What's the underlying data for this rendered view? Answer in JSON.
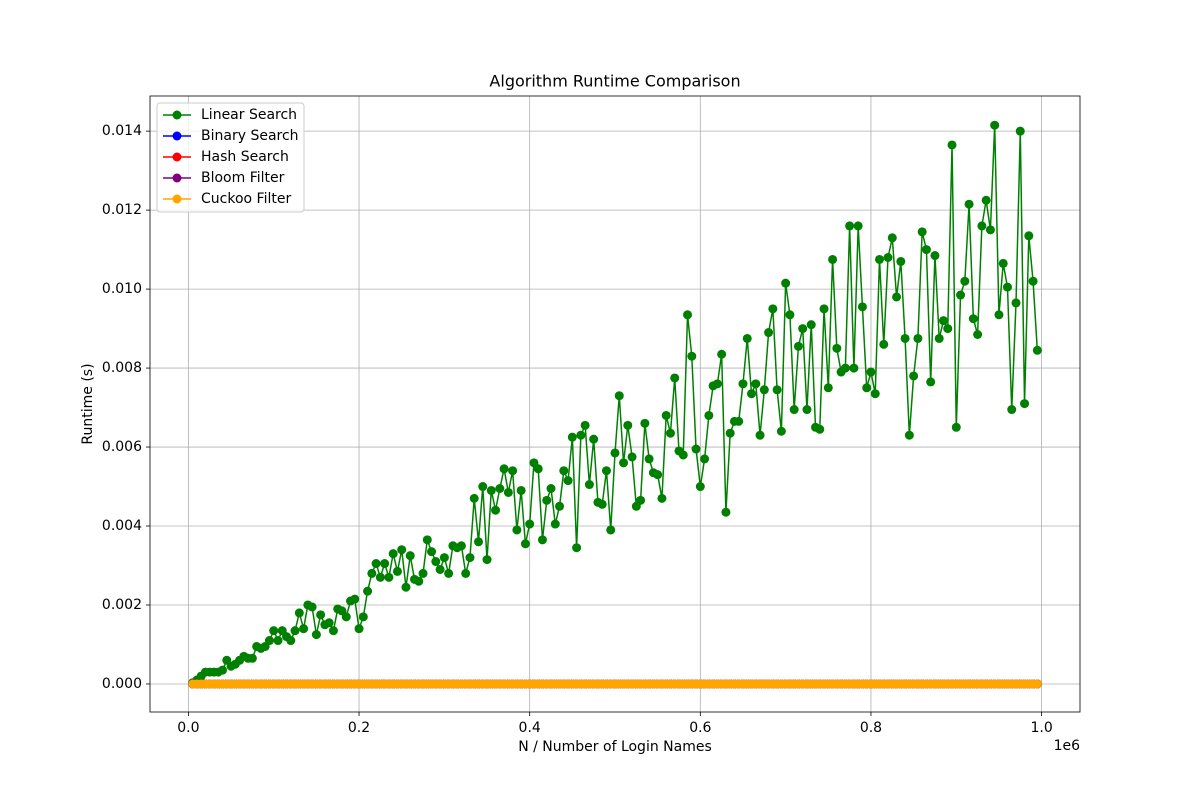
{
  "chart_data": {
    "type": "line",
    "title": "Algorithm Runtime Comparison",
    "x_label": "N / Number of Login Names",
    "y_label": "Runtime (s)",
    "x_offset_label": "1e6",
    "xlim": [
      -45000,
      1045000
    ],
    "ylim": [
      -0.00071,
      0.01489
    ],
    "xticks": [
      {
        "value": 0,
        "label": "0.0"
      },
      {
        "value": 200000,
        "label": "0.2"
      },
      {
        "value": 400000,
        "label": "0.4"
      },
      {
        "value": 600000,
        "label": "0.6"
      },
      {
        "value": 800000,
        "label": "0.8"
      },
      {
        "value": 1000000,
        "label": "1.0"
      }
    ],
    "yticks": [
      {
        "value": 0,
        "label": "0.000"
      },
      {
        "value": 0.002,
        "label": "0.002"
      },
      {
        "value": 0.004,
        "label": "0.004"
      },
      {
        "value": 0.006,
        "label": "0.006"
      },
      {
        "value": 0.008,
        "label": "0.008"
      },
      {
        "value": 0.01,
        "label": "0.010"
      },
      {
        "value": 0.012,
        "label": "0.012"
      },
      {
        "value": 0.014,
        "label": "0.014"
      }
    ],
    "grid": true,
    "legend": "upper left",
    "x": [
      5000,
      10000,
      15000,
      20000,
      25000,
      30000,
      35000,
      40000,
      45000,
      50000,
      55000,
      60000,
      65000,
      70000,
      75000,
      80000,
      85000,
      90000,
      95000,
      100000,
      105000,
      110000,
      115000,
      120000,
      125000,
      130000,
      135000,
      140000,
      145000,
      150000,
      155000,
      160000,
      165000,
      170000,
      175000,
      180000,
      185000,
      190000,
      195000,
      200000,
      205000,
      210000,
      215000,
      220000,
      225000,
      230000,
      235000,
      240000,
      245000,
      250000,
      255000,
      260000,
      265000,
      270000,
      275000,
      280000,
      285000,
      290000,
      295000,
      300000,
      305000,
      310000,
      315000,
      320000,
      325000,
      330000,
      335000,
      340000,
      345000,
      350000,
      355000,
      360000,
      365000,
      370000,
      375000,
      380000,
      385000,
      390000,
      395000,
      400000,
      405000,
      410000,
      415000,
      420000,
      425000,
      430000,
      435000,
      440000,
      445000,
      450000,
      455000,
      460000,
      465000,
      470000,
      475000,
      480000,
      485000,
      490000,
      495000,
      500000,
      505000,
      510000,
      515000,
      520000,
      525000,
      530000,
      535000,
      540000,
      545000,
      550000,
      555000,
      560000,
      565000,
      570000,
      575000,
      580000,
      585000,
      590000,
      595000,
      600000,
      605000,
      610000,
      615000,
      620000,
      625000,
      630000,
      635000,
      640000,
      645000,
      650000,
      655000,
      660000,
      665000,
      670000,
      675000,
      680000,
      685000,
      690000,
      695000,
      700000,
      705000,
      710000,
      715000,
      720000,
      725000,
      730000,
      735000,
      740000,
      745000,
      750000,
      755000,
      760000,
      765000,
      770000,
      775000,
      780000,
      785000,
      790000,
      795000,
      800000,
      805000,
      810000,
      815000,
      820000,
      825000,
      830000,
      835000,
      840000,
      845000,
      850000,
      855000,
      860000,
      865000,
      870000,
      875000,
      880000,
      885000,
      890000,
      895000,
      900000,
      905000,
      910000,
      915000,
      920000,
      925000,
      930000,
      935000,
      940000,
      945000,
      950000,
      955000,
      960000,
      965000,
      970000,
      975000,
      980000,
      985000,
      990000,
      995000
    ],
    "series": [
      {
        "name": "Linear Search",
        "color": "green",
        "values": [
          3e-05,
          0.0001,
          0.0002,
          0.0003,
          0.0003,
          0.0003,
          0.0003,
          0.00035,
          0.0006,
          0.00045,
          0.0005,
          0.0006,
          0.0007,
          0.00065,
          0.00065,
          0.00095,
          0.0009,
          0.00095,
          0.0011,
          0.00135,
          0.0011,
          0.00135,
          0.0012,
          0.0011,
          0.00135,
          0.0018,
          0.0014,
          0.002,
          0.00195,
          0.00125,
          0.00175,
          0.0015,
          0.00155,
          0.00135,
          0.0019,
          0.00185,
          0.0017,
          0.0021,
          0.00215,
          0.0014,
          0.0017,
          0.00235,
          0.0028,
          0.00305,
          0.0027,
          0.00305,
          0.0027,
          0.0033,
          0.00285,
          0.0034,
          0.00245,
          0.00325,
          0.00265,
          0.0026,
          0.0028,
          0.00365,
          0.00335,
          0.0031,
          0.0029,
          0.0032,
          0.0028,
          0.0035,
          0.00345,
          0.0035,
          0.0028,
          0.0032,
          0.0047,
          0.0036,
          0.005,
          0.00315,
          0.0049,
          0.0044,
          0.00495,
          0.00545,
          0.00485,
          0.0054,
          0.0039,
          0.0049,
          0.00355,
          0.00405,
          0.0056,
          0.00545,
          0.00365,
          0.00465,
          0.00495,
          0.00405,
          0.0045,
          0.0054,
          0.00515,
          0.00625,
          0.00345,
          0.0063,
          0.00655,
          0.00505,
          0.0062,
          0.0046,
          0.00455,
          0.0054,
          0.0039,
          0.00585,
          0.0073,
          0.0056,
          0.00655,
          0.00575,
          0.0045,
          0.00465,
          0.0066,
          0.0057,
          0.00535,
          0.0053,
          0.0047,
          0.0068,
          0.00635,
          0.00775,
          0.0059,
          0.0058,
          0.00935,
          0.0083,
          0.00595,
          0.005,
          0.0057,
          0.0068,
          0.00755,
          0.0076,
          0.00835,
          0.00435,
          0.00635,
          0.00665,
          0.00665,
          0.0076,
          0.00875,
          0.00735,
          0.0076,
          0.0063,
          0.00745,
          0.0089,
          0.0095,
          0.00745,
          0.0064,
          0.01015,
          0.00935,
          0.00695,
          0.00855,
          0.009,
          0.00695,
          0.0091,
          0.0065,
          0.00645,
          0.0095,
          0.0075,
          0.01075,
          0.0085,
          0.0079,
          0.008,
          0.0116,
          0.008,
          0.0116,
          0.00955,
          0.0075,
          0.0079,
          0.00735,
          0.01075,
          0.0086,
          0.0108,
          0.0113,
          0.0098,
          0.0107,
          0.00875,
          0.0063,
          0.0078,
          0.00875,
          0.01145,
          0.011,
          0.00765,
          0.01085,
          0.00875,
          0.0092,
          0.009,
          0.01365,
          0.0065,
          0.00985,
          0.0102,
          0.01215,
          0.00925,
          0.00885,
          0.0116,
          0.01225,
          0.0115,
          0.01415,
          0.00935,
          0.01065,
          0.01005,
          0.00695,
          0.00965,
          0.014,
          0.0071,
          0.01135,
          0.0102,
          0.00845
        ]
      },
      {
        "name": "Binary Search",
        "color": "blue",
        "values": [
          0,
          0,
          0,
          0,
          0,
          0,
          0,
          0,
          0,
          0,
          0,
          0,
          0,
          0,
          0,
          0,
          0,
          0,
          0,
          0,
          0,
          0,
          0,
          0,
          0,
          0,
          0,
          0,
          0,
          0,
          0,
          0,
          0,
          0,
          0,
          0,
          0,
          0,
          0,
          0,
          0,
          0,
          0,
          0,
          0,
          0,
          0,
          0,
          0,
          0,
          0,
          0,
          0,
          0,
          0,
          0,
          0,
          0,
          0,
          0,
          0,
          0,
          0,
          0,
          0,
          0,
          0,
          0,
          0,
          0,
          0,
          0,
          0,
          0,
          0,
          0,
          0,
          0,
          0,
          0,
          0,
          0,
          0,
          0,
          0,
          0,
          0,
          0,
          0,
          0,
          0,
          0,
          0,
          0,
          0,
          0,
          0,
          0,
          0,
          0,
          0,
          0,
          0,
          0,
          0,
          0,
          0,
          0,
          0,
          0,
          0,
          0,
          0,
          0,
          0,
          0,
          0,
          0,
          0,
          0,
          0,
          0,
          0,
          0,
          0,
          0,
          0,
          0,
          0,
          0,
          0,
          0,
          0,
          0,
          0,
          0,
          0,
          0,
          0,
          0,
          0,
          0,
          0,
          0,
          0,
          0,
          0,
          0,
          0,
          0,
          0,
          0,
          0,
          0,
          0,
          0,
          0,
          0,
          0,
          0,
          0,
          0,
          0,
          0,
          0,
          0,
          0,
          0,
          0,
          0,
          0,
          0,
          0,
          0,
          0,
          0,
          0,
          0,
          0,
          0,
          0,
          0,
          0,
          0,
          0,
          0,
          0,
          0,
          0,
          0,
          0,
          0,
          0,
          0,
          0,
          0,
          0,
          0,
          0
        ]
      },
      {
        "name": "Hash Search",
        "color": "red",
        "values": [
          0,
          0,
          0,
          0,
          0,
          0,
          0,
          0,
          0,
          0,
          0,
          0,
          0,
          0,
          0,
          0,
          0,
          0,
          0,
          0,
          0,
          0,
          0,
          0,
          0,
          0,
          0,
          0,
          0,
          0,
          0,
          0,
          0,
          0,
          0,
          0,
          0,
          0,
          0,
          0,
          0,
          0,
          0,
          0,
          0,
          0,
          0,
          0,
          0,
          0,
          0,
          0,
          0,
          0,
          0,
          0,
          0,
          0,
          0,
          0,
          0,
          0,
          0,
          0,
          0,
          0,
          0,
          0,
          0,
          0,
          0,
          0,
          0,
          0,
          0,
          0,
          0,
          0,
          0,
          0,
          0,
          0,
          0,
          0,
          0,
          0,
          0,
          0,
          0,
          0,
          0,
          0,
          0,
          0,
          0,
          0,
          0,
          0,
          0,
          0,
          0,
          0,
          0,
          0,
          0,
          0,
          0,
          0,
          0,
          0,
          0,
          0,
          0,
          0,
          0,
          0,
          0,
          0,
          0,
          0,
          0,
          0,
          0,
          0,
          0,
          0,
          0,
          0,
          0,
          0,
          0,
          0,
          0,
          0,
          0,
          0,
          0,
          0,
          0,
          0,
          0,
          0,
          0,
          0,
          0,
          0,
          0,
          0,
          0,
          0,
          0,
          0,
          0,
          0,
          0,
          0,
          0,
          0,
          0,
          0,
          0,
          0,
          0,
          0,
          0,
          0,
          0,
          0,
          0,
          0,
          0,
          0,
          0,
          0,
          0,
          0,
          0,
          0,
          0,
          0,
          0,
          0,
          0,
          0,
          0,
          0,
          0,
          0,
          0,
          0,
          0,
          0,
          0,
          0,
          0,
          0,
          0,
          0,
          0
        ]
      },
      {
        "name": "Bloom Filter",
        "color": "purple",
        "values": [
          0,
          0,
          0,
          0,
          0,
          0,
          0,
          0,
          0,
          0,
          0,
          0,
          0,
          0,
          0,
          0,
          0,
          0,
          0,
          0,
          0,
          0,
          0,
          0,
          0,
          0,
          0,
          0,
          0,
          0,
          0,
          0,
          0,
          0,
          0,
          0,
          0,
          0,
          0,
          0,
          0,
          0,
          0,
          0,
          0,
          0,
          0,
          0,
          0,
          0,
          0,
          0,
          0,
          0,
          0,
          0,
          0,
          0,
          0,
          0,
          0,
          0,
          0,
          0,
          0,
          0,
          0,
          0,
          0,
          0,
          0,
          0,
          0,
          0,
          0,
          0,
          0,
          0,
          0,
          0,
          0,
          0,
          0,
          0,
          0,
          0,
          0,
          0,
          0,
          0,
          0,
          0,
          0,
          0,
          0,
          0,
          0,
          0,
          0,
          0,
          0,
          0,
          0,
          0,
          0,
          0,
          0,
          0,
          0,
          0,
          0,
          0,
          0,
          0,
          0,
          0,
          0,
          0,
          0,
          0,
          0,
          0,
          0,
          0,
          0,
          0,
          0,
          0,
          0,
          0,
          0,
          0,
          0,
          0,
          0,
          0,
          0,
          0,
          0,
          0,
          0,
          0,
          0,
          0,
          0,
          0,
          0,
          0,
          0,
          0,
          0,
          0,
          0,
          0,
          0,
          0,
          0,
          0,
          0,
          0,
          0,
          0,
          0,
          0,
          0,
          0,
          0,
          0,
          0,
          0,
          0,
          0,
          0,
          0,
          0,
          0,
          0,
          0,
          0,
          0,
          0,
          0,
          0,
          0,
          0,
          0,
          0,
          0,
          0,
          0,
          0,
          0,
          0,
          0,
          0,
          0,
          0,
          0,
          0
        ]
      },
      {
        "name": "Cuckoo Filter",
        "color": "orange",
        "values": [
          0,
          0,
          0,
          0,
          0,
          0,
          0,
          0,
          0,
          0,
          0,
          0,
          0,
          0,
          0,
          0,
          0,
          0,
          0,
          0,
          0,
          0,
          0,
          0,
          0,
          0,
          0,
          0,
          0,
          0,
          0,
          0,
          0,
          0,
          0,
          0,
          0,
          0,
          0,
          0,
          0,
          0,
          0,
          0,
          0,
          0,
          0,
          0,
          0,
          0,
          0,
          0,
          0,
          0,
          0,
          0,
          0,
          0,
          0,
          0,
          0,
          0,
          0,
          0,
          0,
          0,
          0,
          0,
          0,
          0,
          0,
          0,
          0,
          0,
          0,
          0,
          0,
          0,
          0,
          0,
          0,
          0,
          0,
          0,
          0,
          0,
          0,
          0,
          0,
          0,
          0,
          0,
          0,
          0,
          0,
          0,
          0,
          0,
          0,
          0,
          0,
          0,
          0,
          0,
          0,
          0,
          0,
          0,
          0,
          0,
          0,
          0,
          0,
          0,
          0,
          0,
          0,
          0,
          0,
          0,
          0,
          0,
          0,
          0,
          0,
          0,
          0,
          0,
          0,
          0,
          0,
          0,
          0,
          0,
          0,
          0,
          0,
          0,
          0,
          0,
          0,
          0,
          0,
          0,
          0,
          0,
          0,
          0,
          0,
          0,
          0,
          0,
          0,
          0,
          0,
          0,
          0,
          0,
          0,
          0,
          0,
          0,
          0,
          0,
          0,
          0,
          0,
          0,
          0,
          0,
          0,
          0,
          0,
          0,
          0,
          0,
          0,
          0,
          0,
          0,
          0,
          0,
          0,
          0,
          0,
          0,
          0,
          0,
          0,
          0,
          0,
          0,
          0,
          0,
          0,
          0,
          0,
          0,
          0
        ]
      }
    ]
  }
}
